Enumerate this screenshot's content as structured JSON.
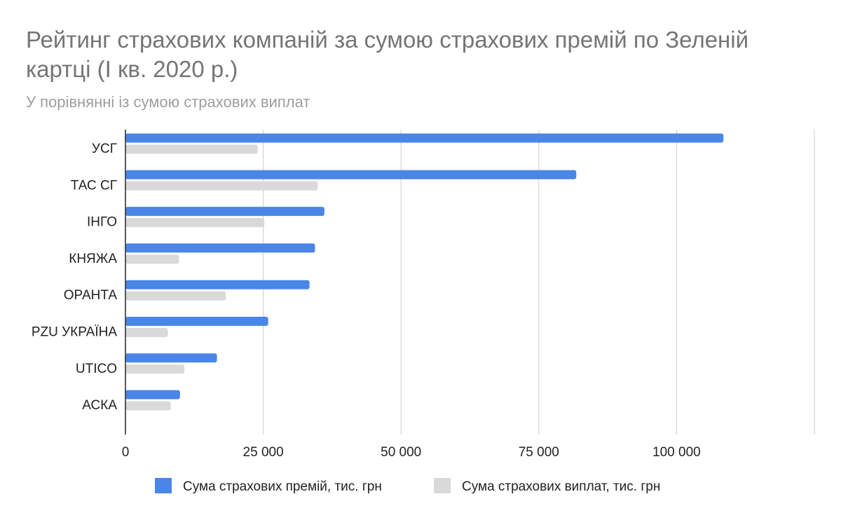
{
  "chart_data": {
    "type": "bar",
    "orientation": "horizontal",
    "title": "Рейтинг страхових компаній за сумою страхових премій по Зеленій картці (І кв. 2020 р.)",
    "subtitle": "У порівнянні із сумою страхових виплат",
    "categories": [
      "УСГ",
      "ТАС СГ",
      "ІНГО",
      "КНЯЖА",
      "ОРАНТА",
      "PZU УКРАЇНА",
      "UTICO",
      "АСКА"
    ],
    "series": [
      {
        "name": "Сума страхових премій, тис. грн",
        "color": "#4a86e8",
        "values": [
          108500,
          81800,
          36100,
          34400,
          33400,
          25900,
          16600,
          9900
        ]
      },
      {
        "name": "Сума страхових виплат, тис. грн",
        "color": "#d9d9d9",
        "values": [
          24000,
          34900,
          25200,
          9700,
          18200,
          7700,
          10700,
          8200
        ]
      }
    ],
    "xlim": [
      0,
      125000
    ],
    "xticks": [
      0,
      25000,
      50000,
      75000,
      100000
    ],
    "xtick_labels": [
      "0",
      "25 000",
      "50 000",
      "75 000",
      "100 000"
    ],
    "grid": true,
    "legend_position": "bottom"
  }
}
